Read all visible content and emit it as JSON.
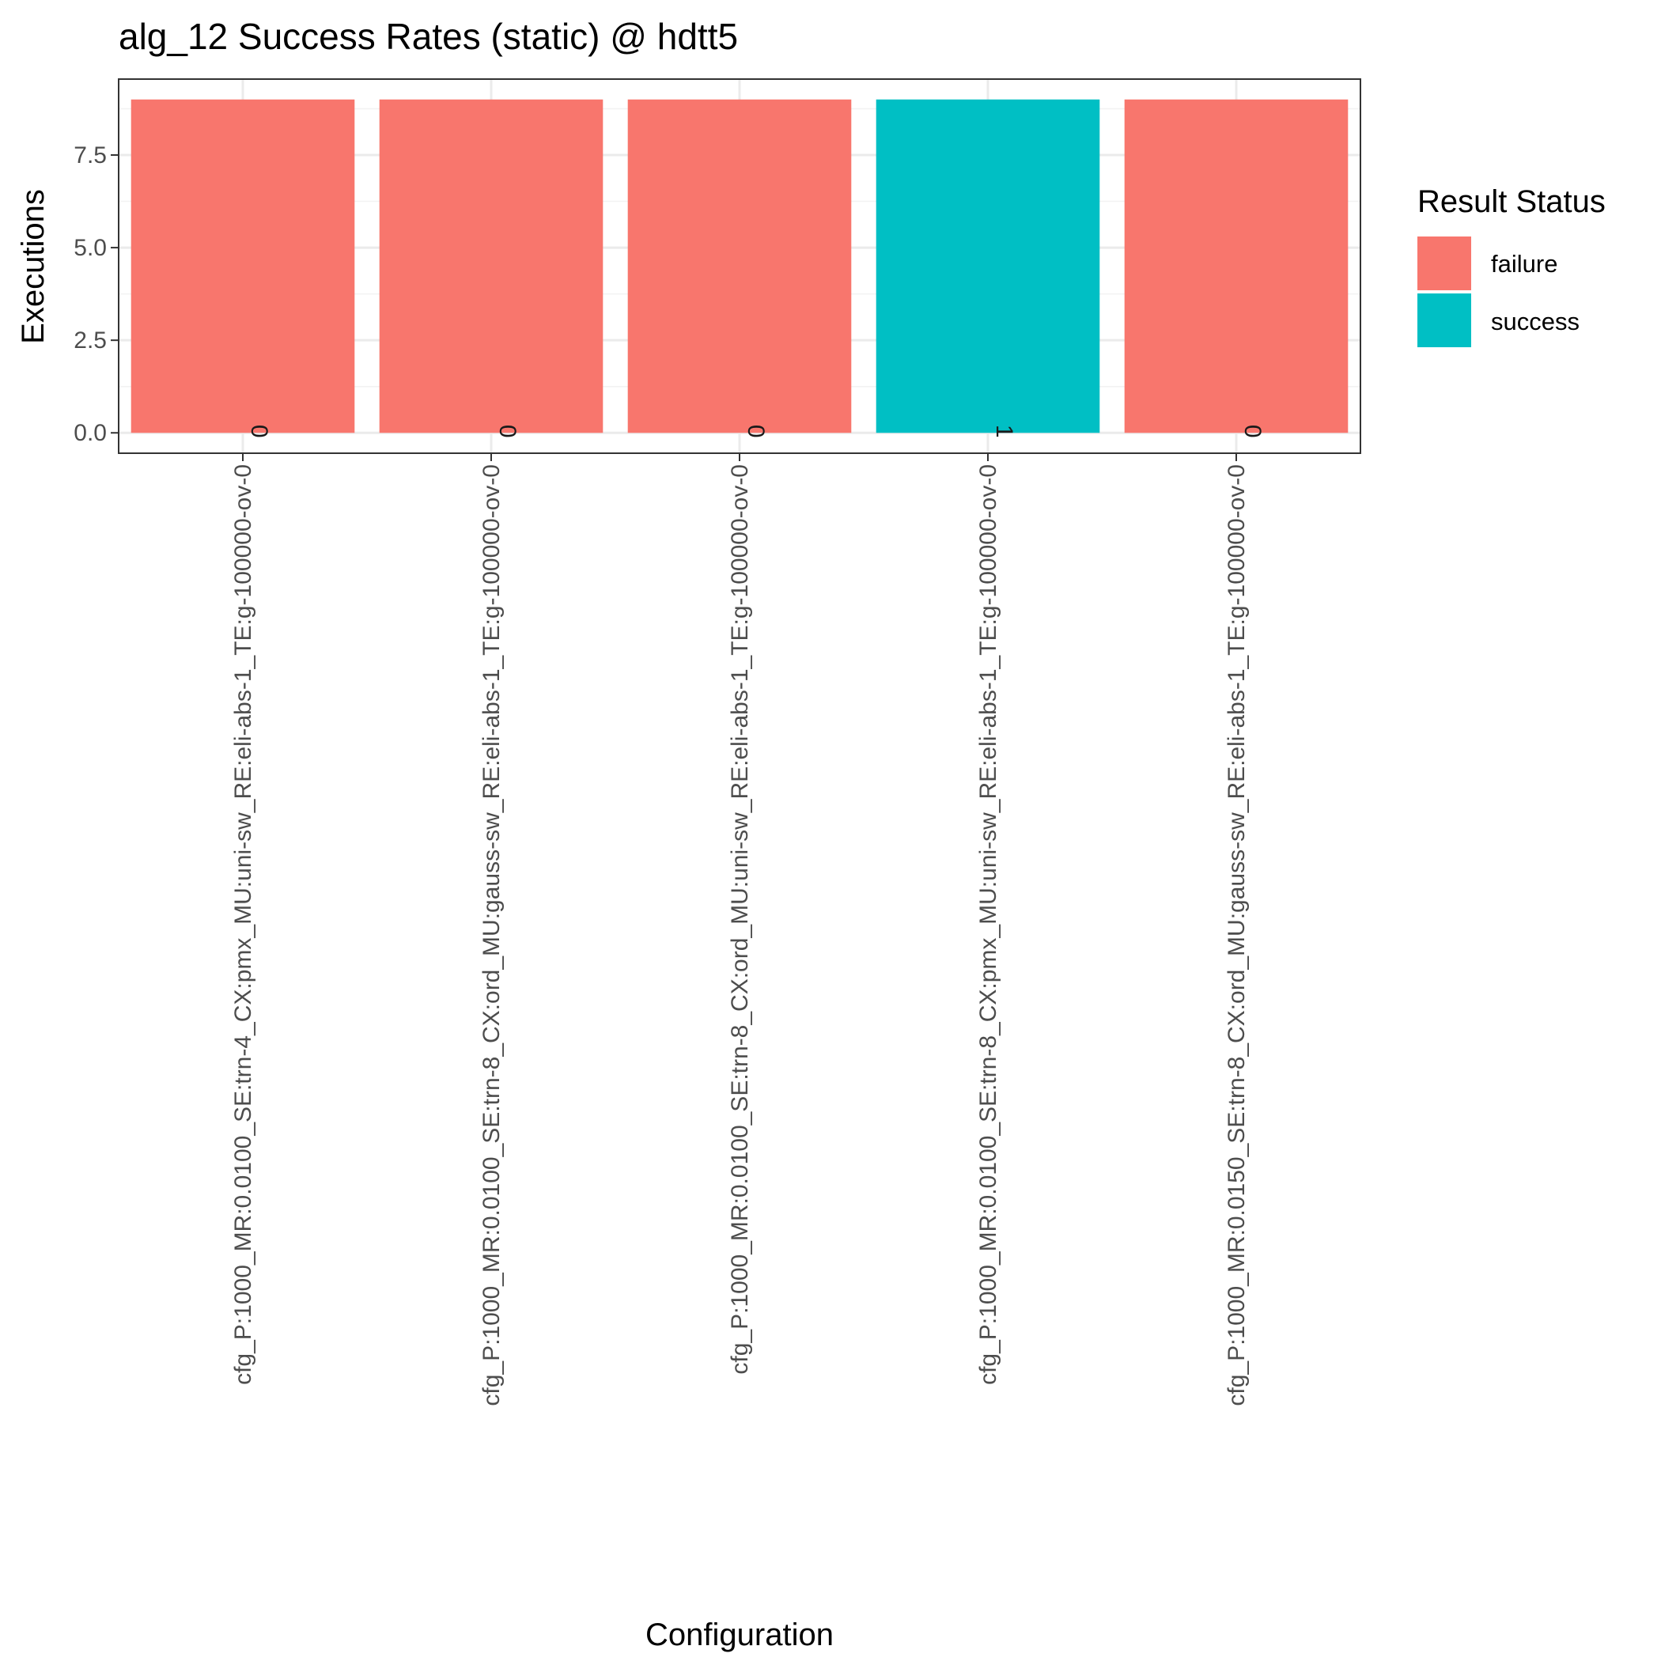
{
  "chart_data": {
    "type": "bar",
    "title": "alg_12 Success Rates (static) @ hdtt5",
    "xlabel": "Configuration",
    "ylabel": "Executions",
    "ylim": [
      -0.55,
      9.55
    ],
    "yticks": [
      0.0,
      2.5,
      5.0,
      7.5
    ],
    "ytick_labels": [
      "0.0",
      "2.5",
      "5.0",
      "7.5"
    ],
    "grid": true,
    "legend": {
      "title": "Result Status",
      "position": "right",
      "entries": [
        {
          "label": "failure",
          "color": "#F8766D"
        },
        {
          "label": "success",
          "color": "#00BFC4"
        }
      ]
    },
    "categories": [
      "cfg_P:1000_MR:0.0100_SE:trn-4_CX:pmx_MU:uni-sw_RE:eli-abs-1_TE:g-100000-ov-0",
      "cfg_P:1000_MR:0.0100_SE:trn-8_CX:ord_MU:gauss-sw_RE:eli-abs-1_TE:g-100000-ov-0",
      "cfg_P:1000_MR:0.0100_SE:trn-8_CX:ord_MU:uni-sw_RE:eli-abs-1_TE:g-100000-ov-0",
      "cfg_P:1000_MR:0.0100_SE:trn-8_CX:pmx_MU:uni-sw_RE:eli-abs-1_TE:g-100000-ov-0",
      "cfg_P:1000_MR:0.0150_SE:trn-8_CX:ord_MU:gauss-sw_RE:eli-abs-1_TE:g-100000-ov-0"
    ],
    "values": [
      9,
      9,
      9,
      9,
      9
    ],
    "status": [
      "failure",
      "failure",
      "failure",
      "success",
      "failure"
    ],
    "bar_labels": [
      "0",
      "0",
      "0",
      "1",
      "0"
    ]
  }
}
